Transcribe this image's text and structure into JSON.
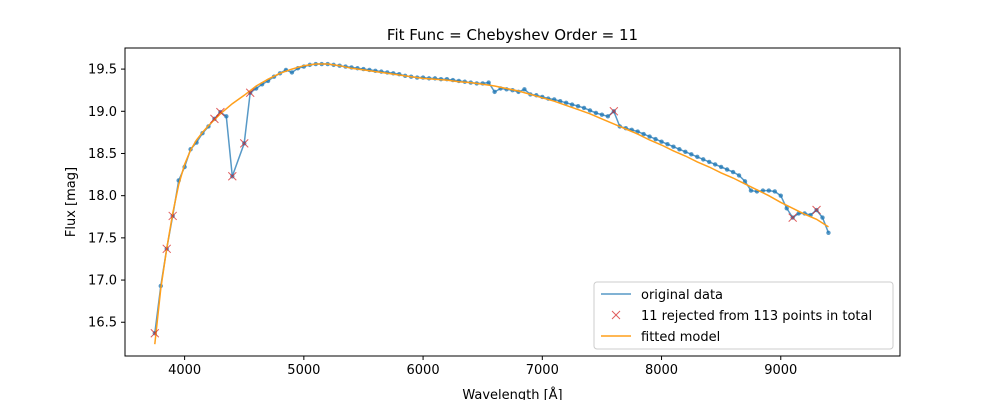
{
  "chart_data": {
    "type": "line",
    "title": "Fit Func = Chebyshev  Order = 11",
    "xlabel": "Wavelength [Å]",
    "ylabel": "Flux [mag]",
    "xlim": [
      3500,
      10000
    ],
    "ylim": [
      16.1,
      19.75
    ],
    "invert_y": true,
    "xticks": [
      4000,
      5000,
      6000,
      7000,
      8000,
      9000
    ],
    "yticks": [
      16.5,
      17.0,
      17.5,
      18.0,
      18.5,
      19.0,
      19.5
    ],
    "grid": false,
    "legend_position": "lower-right",
    "colors": {
      "data": "#1f77b4",
      "rejected": "#d62728",
      "model": "#ff9f1a"
    },
    "series": [
      {
        "name": "original data",
        "style": "line+points",
        "x": [
          3750,
          3800,
          3850,
          3900,
          3950,
          4000,
          4050,
          4100,
          4150,
          4200,
          4250,
          4300,
          4350,
          4400,
          4500,
          4550,
          4600,
          4650,
          4700,
          4750,
          4800,
          4850,
          4900,
          4950,
          5000,
          5050,
          5100,
          5150,
          5200,
          5250,
          5300,
          5350,
          5400,
          5450,
          5500,
          5550,
          5600,
          5650,
          5700,
          5750,
          5800,
          5850,
          5900,
          5950,
          6000,
          6050,
          6100,
          6150,
          6200,
          6250,
          6300,
          6350,
          6400,
          6450,
          6500,
          6550,
          6600,
          6650,
          6700,
          6750,
          6800,
          6850,
          6900,
          6950,
          7000,
          7050,
          7100,
          7150,
          7200,
          7250,
          7300,
          7350,
          7400,
          7450,
          7500,
          7550,
          7600,
          7650,
          7700,
          7750,
          7800,
          7850,
          7900,
          7950,
          8000,
          8050,
          8100,
          8150,
          8200,
          8250,
          8300,
          8350,
          8400,
          8450,
          8500,
          8550,
          8600,
          8650,
          8700,
          8750,
          8800,
          8850,
          8900,
          8950,
          9000,
          9050,
          9100,
          9150,
          9200,
          9250,
          9300,
          9350,
          9400
        ],
        "y": [
          16.37,
          16.93,
          17.37,
          17.76,
          18.18,
          18.34,
          18.55,
          18.63,
          18.74,
          18.82,
          18.91,
          18.99,
          18.94,
          18.23,
          18.62,
          19.22,
          19.27,
          19.32,
          19.36,
          19.41,
          19.45,
          19.49,
          19.46,
          19.51,
          19.53,
          19.55,
          19.56,
          19.56,
          19.56,
          19.55,
          19.54,
          19.53,
          19.52,
          19.51,
          19.5,
          19.49,
          19.48,
          19.47,
          19.46,
          19.45,
          19.44,
          19.42,
          19.41,
          19.4,
          19.4,
          19.39,
          19.39,
          19.38,
          19.38,
          19.37,
          19.36,
          19.35,
          19.34,
          19.33,
          19.33,
          19.34,
          19.23,
          19.27,
          19.26,
          19.25,
          19.23,
          19.26,
          19.2,
          19.19,
          19.17,
          19.15,
          19.14,
          19.12,
          19.1,
          19.08,
          19.06,
          19.04,
          19.01,
          18.98,
          18.96,
          18.94,
          19.0,
          18.82,
          18.8,
          18.78,
          18.76,
          18.73,
          18.7,
          18.67,
          18.64,
          18.61,
          18.58,
          18.55,
          18.52,
          18.49,
          18.46,
          18.43,
          18.4,
          18.37,
          18.34,
          18.31,
          18.28,
          18.24,
          18.17,
          18.06,
          18.05,
          18.06,
          18.06,
          18.05,
          18.0,
          17.85,
          17.74,
          17.79,
          17.79,
          17.77,
          17.83,
          17.74,
          17.56
        ]
      },
      {
        "name": "11 rejected from 113 points in total",
        "style": "x-markers",
        "x": [
          3750,
          3850,
          3900,
          4250,
          4300,
          4400,
          4500,
          4550,
          7600,
          9100,
          9300
        ],
        "y": [
          16.37,
          17.37,
          17.76,
          18.91,
          18.99,
          18.23,
          18.62,
          19.22,
          19.0,
          17.74,
          17.83
        ]
      },
      {
        "name": "fitted model",
        "style": "line",
        "x": [
          3750,
          3800,
          3850,
          3900,
          3950,
          4000,
          4050,
          4100,
          4150,
          4200,
          4300,
          4400,
          4500,
          4600,
          4700,
          4800,
          4900,
          5000,
          5100,
          5200,
          5300,
          5400,
          5500,
          5600,
          5700,
          5800,
          5900,
          6000,
          6100,
          6200,
          6300,
          6400,
          6500,
          6600,
          6700,
          6800,
          6900,
          7000,
          7100,
          7200,
          7300,
          7400,
          7500,
          7600,
          7700,
          7800,
          7900,
          8000,
          8100,
          8200,
          8300,
          8400,
          8500,
          8600,
          8700,
          8800,
          8900,
          9000,
          9100,
          9200,
          9300,
          9400
        ],
        "y": [
          16.24,
          16.9,
          17.37,
          17.79,
          18.13,
          18.37,
          18.54,
          18.66,
          18.75,
          18.83,
          18.97,
          19.09,
          19.19,
          19.3,
          19.38,
          19.45,
          19.5,
          19.54,
          19.56,
          19.56,
          19.54,
          19.51,
          19.49,
          19.47,
          19.45,
          19.43,
          19.41,
          19.39,
          19.38,
          19.37,
          19.35,
          19.34,
          19.32,
          19.3,
          19.27,
          19.24,
          19.2,
          19.16,
          19.12,
          19.07,
          19.02,
          18.97,
          18.91,
          18.85,
          18.79,
          18.73,
          18.66,
          18.6,
          18.53,
          18.47,
          18.4,
          18.34,
          18.27,
          18.21,
          18.14,
          18.07,
          18.0,
          17.92,
          17.85,
          17.78,
          17.72,
          17.63
        ]
      }
    ]
  }
}
